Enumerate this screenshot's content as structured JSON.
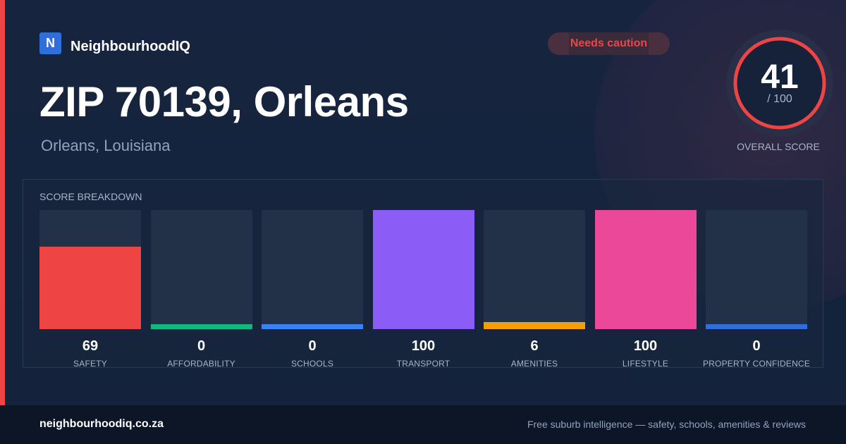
{
  "brand": {
    "logo_letter": "N",
    "name": "NeighbourhoodIQ",
    "logo_color": "#2f6fdb",
    "accent_color": "#ef4444"
  },
  "badge": {
    "label": "Needs caution",
    "color": "#ef4444"
  },
  "header": {
    "title": "ZIP 70139, Orleans",
    "subtitle": "Orleans, Louisiana"
  },
  "overall": {
    "score": "41",
    "out_of": "/ 100",
    "caption": "OVERALL SCORE",
    "max": 100,
    "ring_color": "#ef4444"
  },
  "breakdown": {
    "title": "SCORE BREAKDOWN"
  },
  "chart_data": {
    "type": "bar",
    "title": "SCORE BREAKDOWN",
    "categories": [
      "SAFETY",
      "AFFORDABILITY",
      "SCHOOLS",
      "TRANSPORT",
      "AMENITIES",
      "LIFESTYLE",
      "PROPERTY CONFIDENCE"
    ],
    "values": [
      69,
      0,
      0,
      100,
      6,
      100,
      0
    ],
    "colors": [
      "#ef4444",
      "#10b981",
      "#3b82f6",
      "#8b5cf6",
      "#f59e0b",
      "#ec4899",
      "#2f6fdb"
    ],
    "ylim": [
      0,
      100
    ],
    "grid": false,
    "xlabel": "",
    "ylabel": ""
  },
  "footer": {
    "domain": "neighbourhoodiq.co.za",
    "tagline": "Free suburb intelligence — safety, schools, amenities & reviews"
  }
}
